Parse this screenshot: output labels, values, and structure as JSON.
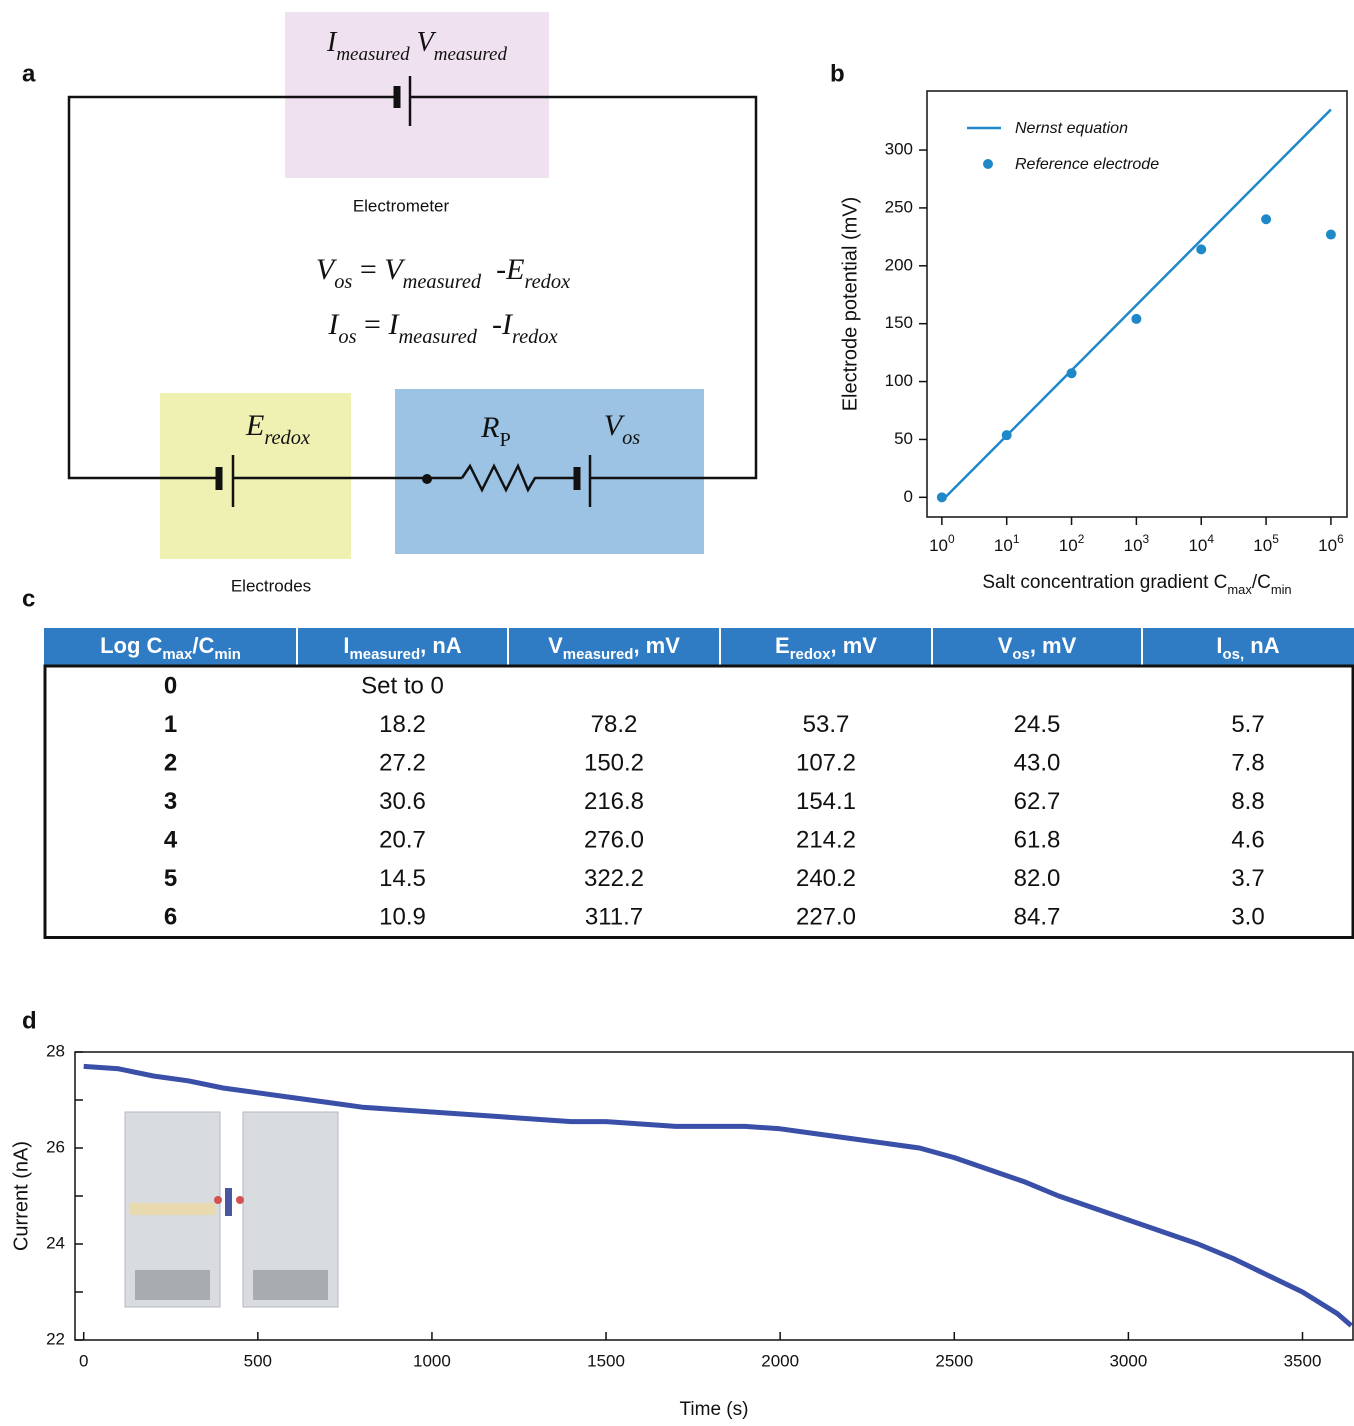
{
  "panel_labels": [
    "a",
    "b",
    "c",
    "d"
  ],
  "circuit": {
    "meter_label": [
      {
        "text": "I",
        "italic": true
      },
      {
        "text": "measured",
        "italic": true,
        "sub": true
      },
      {
        "text": " V",
        "italic": true
      },
      {
        "text": "measured",
        "italic": true,
        "sub": true
      }
    ],
    "meter_caption": "Electrometer",
    "equations": [
      [
        {
          "text": "V",
          "italic": true
        },
        {
          "text": "os",
          "italic": true,
          "sub": true
        },
        {
          "text": " = "
        },
        {
          "text": "V",
          "italic": true
        },
        {
          "text": "measured",
          "italic": true,
          "sub": true
        },
        {
          "text": "  -E",
          "italic": true
        },
        {
          "text": "redox",
          "italic": true,
          "sub": true
        }
      ],
      [
        {
          "text": "I",
          "italic": true
        },
        {
          "text": "os",
          "italic": true,
          "sub": true
        },
        {
          "text": " = "
        },
        {
          "text": "I",
          "italic": true
        },
        {
          "text": "measured",
          "italic": true,
          "sub": true
        },
        {
          "text": "  -I",
          "italic": true
        },
        {
          "text": "redox",
          "italic": true,
          "sub": true
        }
      ]
    ],
    "electrode_label": [
      {
        "text": "E",
        "italic": true
      },
      {
        "text": "redox",
        "italic": true,
        "sub": true
      }
    ],
    "resistor_label": [
      {
        "text": "R",
        "italic": true
      },
      {
        "text": "P",
        "sub": true
      }
    ],
    "source_label": [
      {
        "text": "V",
        "italic": true
      },
      {
        "text": "os",
        "italic": true,
        "sub": true
      }
    ],
    "electrodes_caption": "Electrodes"
  },
  "chart_data": [
    {
      "type": "line",
      "x_log": true,
      "xlim": [
        0.59,
        1770000
      ],
      "ylim": [
        -17,
        351
      ],
      "xticks": [
        {
          "value": 1,
          "label": "10",
          "exponent": "0"
        },
        {
          "value": 10,
          "label": "10",
          "exponent": "1"
        },
        {
          "value": 100,
          "label": "10",
          "exponent": "2"
        },
        {
          "value": 1000,
          "label": "10",
          "exponent": "3"
        },
        {
          "value": 10000,
          "label": "10",
          "exponent": "4"
        },
        {
          "value": 100000,
          "label": "10",
          "exponent": "5"
        },
        {
          "value": 1000000,
          "label": "10",
          "exponent": "6"
        }
      ],
      "yticks": [
        0,
        50,
        100,
        150,
        200,
        250,
        300
      ],
      "xlabel": [
        {
          "text": "Salt concentration gradient C"
        },
        {
          "text": "max",
          "sub": true
        },
        {
          "text": "/C"
        },
        {
          "text": "min",
          "sub": true
        }
      ],
      "ylabel": "Electrode potential (mV)",
      "legend": "upper left",
      "series": [
        {
          "name": "Nernst equation",
          "type": "line",
          "color": "#1e88c8",
          "x": [
            1,
            1000000
          ],
          "values": [
            -3,
            335
          ]
        },
        {
          "name": "Reference electrode",
          "type": "scatter",
          "color": "#1e88c8",
          "x": [
            1,
            10,
            100,
            1000,
            10000,
            100000,
            1000000
          ],
          "values": [
            0,
            53.7,
            107.2,
            154.1,
            214.2,
            240.2,
            227.0
          ]
        }
      ]
    },
    {
      "type": "line",
      "xlim": [
        -25,
        3645
      ],
      "ylim": [
        22,
        28
      ],
      "xticks": [
        0,
        500,
        1000,
        1500,
        2000,
        2500,
        3000,
        3500
      ],
      "yticks": [
        22,
        24,
        26,
        28
      ],
      "yminorticks": [
        23,
        25,
        27
      ],
      "xlabel": "Time (s)",
      "ylabel": "Current (nA)",
      "series": [
        {
          "type": "line",
          "color": "#3a4fa8",
          "x": [
            0,
            100,
            200,
            300,
            400,
            500,
            600,
            700,
            800,
            900,
            1000,
            1100,
            1200,
            1300,
            1400,
            1500,
            1600,
            1700,
            1800,
            1900,
            2000,
            2100,
            2200,
            2300,
            2400,
            2500,
            2600,
            2700,
            2800,
            2900,
            3000,
            3100,
            3200,
            3300,
            3400,
            3500,
            3600,
            3640
          ],
          "values": [
            27.7,
            27.65,
            27.5,
            27.4,
            27.25,
            27.15,
            27.05,
            26.95,
            26.85,
            26.8,
            26.75,
            26.7,
            26.65,
            26.6,
            26.55,
            26.55,
            26.5,
            26.45,
            26.45,
            26.45,
            26.4,
            26.3,
            26.2,
            26.1,
            26.0,
            25.8,
            25.55,
            25.3,
            25.0,
            24.75,
            24.5,
            24.25,
            24.0,
            23.7,
            23.35,
            23.0,
            22.55,
            22.3
          ]
        }
      ]
    }
  ],
  "table": {
    "header": [
      [
        {
          "text": "Log C"
        },
        {
          "text": "max",
          "sub": true
        },
        {
          "text": "/C"
        },
        {
          "text": "min",
          "sub": true
        }
      ],
      [
        {
          "text": "I"
        },
        {
          "text": "measured",
          "sub": true
        },
        {
          "text": ", nA"
        }
      ],
      [
        {
          "text": "V"
        },
        {
          "text": "measured",
          "sub": true
        },
        {
          "text": ", mV"
        }
      ],
      [
        {
          "text": "E"
        },
        {
          "text": "redox",
          "sub": true
        },
        {
          "text": ", mV"
        }
      ],
      [
        {
          "text": "V"
        },
        {
          "text": "os",
          "sub": true
        },
        {
          "text": ", mV"
        }
      ],
      [
        {
          "text": "I"
        },
        {
          "text": "os,",
          "sub": true
        },
        {
          "text": " nA"
        }
      ]
    ],
    "rows": [
      [
        "0",
        "Set to 0"
      ],
      [
        "1",
        "18.2",
        "78.2",
        "53.7",
        "24.5",
        "5.7"
      ],
      [
        "2",
        "27.2",
        "150.2",
        "107.2",
        "43.0",
        "7.8"
      ],
      [
        "3",
        "30.6",
        "216.8",
        "154.1",
        "62.7",
        "8.8"
      ],
      [
        "4",
        "20.7",
        "276.0",
        "214.2",
        "61.8",
        "4.6"
      ],
      [
        "5",
        "14.5",
        "322.2",
        "240.2",
        "82.0",
        "3.7"
      ],
      [
        "6",
        "10.9",
        "311.7",
        "227.0",
        "84.7",
        "3.0"
      ]
    ]
  }
}
